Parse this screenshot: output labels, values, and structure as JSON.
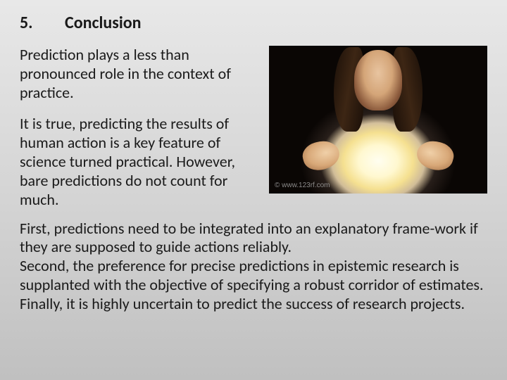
{
  "heading": {
    "number": "5.",
    "title": "Conclusion"
  },
  "top": {
    "p1": "Prediction plays a less than pronounced role in the context of practice.",
    "p2": "It is true, predicting the results of human action is a key feature of science turned practical. However, bare predictions do not count for much."
  },
  "bottom": {
    "text": "First, predictions need to be integrated into an explanatory frame-work if they are supposed to guide actions reliably.\nSecond, the preference for precise predictions in epistemic research is supplanted with the objective of specifying a robust corridor of estimates.\nFinally, it is highly uncertain to predict the success of research projects."
  },
  "image": {
    "name": "fortune-teller-crystal-ball",
    "watermark": "© www.123rf.com",
    "colors": {
      "glow": "#fffef0",
      "dark_bg": "#0a0604",
      "skin": "#e8c4a0",
      "hair": "#3d2614"
    }
  },
  "style": {
    "bg_gradient_top": "#e8e8e8",
    "bg_gradient_bottom": "#c0c0c0",
    "text_color": "#1a1a1a",
    "heading_fontsize": 24,
    "body_fontsize": 22
  }
}
